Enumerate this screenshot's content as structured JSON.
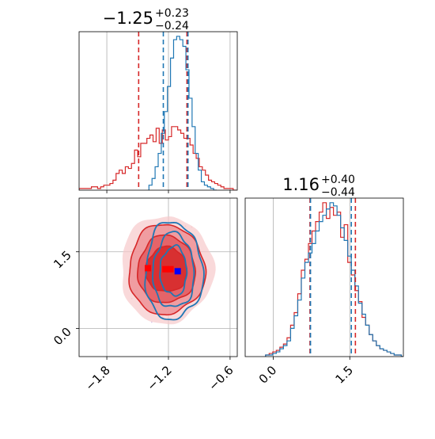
{
  "chart_data": [
    {
      "type": "histogram",
      "panel": "top-left",
      "title": {
        "value": "−1.25",
        "upper": "+0.23",
        "lower": "−0.24"
      },
      "xlim": [
        -2.07,
        -0.53
      ],
      "grid": true,
      "quantile_lines": [
        {
          "x": -1.49,
          "color": "#d62728"
        },
        {
          "x": -1.25,
          "color": "#1f77b4"
        },
        {
          "x": -1.02,
          "color": "#d62728"
        },
        {
          "x": -1.01,
          "color": "#1f77b4"
        }
      ],
      "series": [
        {
          "color": "#d62728",
          "bins_x": [
            -2.07,
            -2.04,
            -2.01,
            -1.98,
            -1.95,
            -1.92,
            -1.89,
            -1.86,
            -1.83,
            -1.8,
            -1.77,
            -1.74,
            -1.71,
            -1.68,
            -1.65,
            -1.62,
            -1.59,
            -1.56,
            -1.53,
            -1.5,
            -1.47,
            -1.44,
            -1.41,
            -1.38,
            -1.35,
            -1.32,
            -1.29,
            -1.26,
            -1.23,
            -1.2,
            -1.17,
            -1.14,
            -1.11,
            -1.08,
            -1.05,
            -1.02,
            -0.99,
            -0.96,
            -0.93,
            -0.9,
            -0.87,
            -0.84,
            -0.81,
            -0.78,
            -0.75,
            -0.72,
            -0.69,
            -0.66,
            -0.63,
            -0.6,
            -0.57
          ],
          "counts": [
            1,
            1,
            1,
            1,
            2,
            2,
            1,
            2,
            3,
            3,
            4,
            6,
            10,
            12,
            10,
            14,
            13,
            16,
            24,
            20,
            28,
            28,
            31,
            33,
            29,
            37,
            28,
            36,
            30,
            32,
            38,
            38,
            36,
            34,
            31,
            31,
            27,
            22,
            19,
            14,
            12,
            9,
            6,
            5,
            4,
            3,
            2,
            1,
            1,
            1,
            0
          ]
        },
        {
          "color": "#1f77b4",
          "bins_x": [
            -1.39,
            -1.36,
            -1.33,
            -1.3,
            -1.27,
            -1.24,
            -1.21,
            -1.18,
            -1.15,
            -1.12,
            -1.09,
            -1.06,
            -1.03,
            -1.0,
            -0.97,
            -0.94,
            -0.91,
            -0.88,
            -0.85,
            -0.82,
            -0.79,
            -0.76
          ],
          "counts": [
            3,
            7,
            14,
            22,
            34,
            47,
            62,
            79,
            90,
            92,
            90,
            86,
            72,
            55,
            38,
            22,
            12,
            5,
            3,
            2,
            1,
            0
          ]
        }
      ]
    },
    {
      "type": "contour",
      "panel": "bottom-left",
      "xlim": [
        -2.07,
        -0.53
      ],
      "ylim": [
        -0.55,
        2.55
      ],
      "xticks": [
        "−1.8",
        "−1.2",
        "−0.6"
      ],
      "yticks": [
        "1.5",
        "0.0"
      ],
      "grid": true,
      "series": [
        {
          "color": "#d62728",
          "center": [
            -1.22,
            1.15
          ],
          "levels": [
            [
              0.45,
              1.05
            ],
            [
              0.37,
              0.88
            ],
            [
              0.28,
              0.66
            ],
            [
              0.2,
              0.44
            ]
          ]
        },
        {
          "color": "#1f77b4",
          "center": [
            -1.15,
            1.12
          ],
          "levels": [
            [
              0.28,
              0.95
            ],
            [
              0.2,
              0.73
            ],
            [
              0.13,
              0.48
            ]
          ]
        }
      ],
      "markers": [
        {
          "x": -1.4,
          "y": 1.18,
          "color": "#ff0000"
        },
        {
          "x": -1.23,
          "y": 1.16,
          "color": "#ff0000"
        },
        {
          "x": -1.18,
          "y": 1.16,
          "color": "#ff0000"
        },
        {
          "x": -1.11,
          "y": 1.12,
          "color": "#0000ff"
        }
      ]
    },
    {
      "type": "histogram",
      "panel": "bottom-right",
      "title": {
        "value": "1.16",
        "upper": "+0.40",
        "lower": "−0.44"
      },
      "xlim": [
        -0.55,
        2.55
      ],
      "xticks": [
        "0.0",
        "1.5"
      ],
      "grid": true,
      "quantile_lines": [
        {
          "x": 0.72,
          "color": "#d62728"
        },
        {
          "x": 0.73,
          "color": "#1f77b4"
        },
        {
          "x": 1.53,
          "color": "#1f77b4"
        },
        {
          "x": 1.61,
          "color": "#d62728"
        }
      ],
      "series": [
        {
          "color": "#d62728",
          "bins_x": [
            -0.15,
            -0.08,
            -0.01,
            0.06,
            0.13,
            0.2,
            0.27,
            0.34,
            0.41,
            0.48,
            0.55,
            0.62,
            0.69,
            0.76,
            0.83,
            0.9,
            0.97,
            1.04,
            1.11,
            1.18,
            1.25,
            1.32,
            1.39,
            1.46,
            1.53,
            1.6,
            1.67,
            1.74,
            1.81,
            1.88,
            1.95,
            2.02,
            2.09,
            2.16,
            2.23,
            2.3,
            2.37,
            2.44,
            2.51
          ],
          "counts": [
            1,
            2,
            3,
            4,
            6,
            8,
            12,
            20,
            28,
            40,
            55,
            62,
            72,
            80,
            86,
            92,
            98,
            88,
            95,
            90,
            92,
            76,
            84,
            60,
            52,
            42,
            35,
            25,
            20,
            14,
            10,
            7,
            5,
            4,
            3,
            2,
            1,
            1,
            0
          ]
        },
        {
          "color": "#1f77b4",
          "bins_x": [
            -0.15,
            -0.08,
            -0.01,
            0.06,
            0.13,
            0.2,
            0.27,
            0.34,
            0.41,
            0.48,
            0.55,
            0.62,
            0.69,
            0.76,
            0.83,
            0.9,
            0.97,
            1.04,
            1.11,
            1.18,
            1.25,
            1.32,
            1.39,
            1.46,
            1.53,
            1.6,
            1.67,
            1.74,
            1.81,
            1.88,
            1.95,
            2.02,
            2.09,
            2.16,
            2.23,
            2.3,
            2.37,
            2.44,
            2.51
          ],
          "counts": [
            1,
            1,
            2,
            3,
            5,
            7,
            10,
            18,
            26,
            36,
            50,
            60,
            66,
            72,
            80,
            86,
            90,
            94,
            98,
            96,
            90,
            82,
            74,
            64,
            55,
            45,
            34,
            27,
            20,
            14,
            10,
            7,
            5,
            4,
            3,
            2,
            1,
            1,
            0
          ]
        }
      ]
    }
  ]
}
